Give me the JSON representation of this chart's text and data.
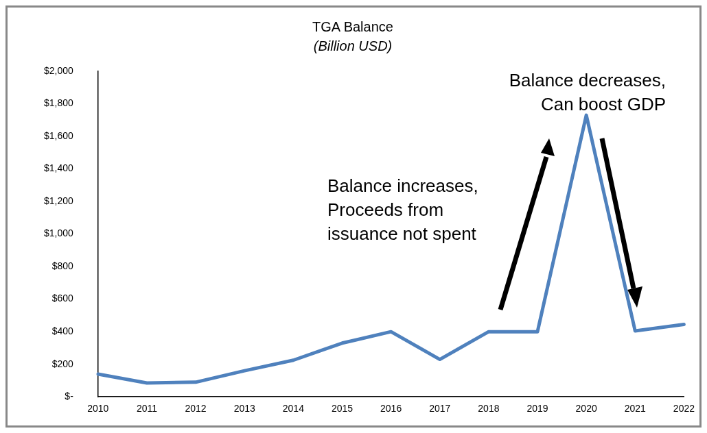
{
  "chart_data": {
    "type": "line",
    "title": "TGA Balance",
    "subtitle": "(Billion USD)",
    "categories": [
      "2010",
      "2011",
      "2012",
      "2013",
      "2014",
      "2015",
      "2016",
      "2017",
      "2018",
      "2019",
      "2020",
      "2021",
      "2022"
    ],
    "series": [
      {
        "color": "#4f81bd",
        "values": [
          140,
          85,
          90,
          160,
          225,
          330,
          400,
          230,
          400,
          400,
          1730,
          405,
          445
        ]
      }
    ],
    "ylim": [
      0,
      2000
    ],
    "yticks": [
      {
        "value": 0,
        "label": "$-"
      },
      {
        "value": 200,
        "label": "$200"
      },
      {
        "value": 400,
        "label": "$400"
      },
      {
        "value": 600,
        "label": "$600"
      },
      {
        "value": 800,
        "label": "$800"
      },
      {
        "value": 1000,
        "label": "$1,000"
      },
      {
        "value": 1200,
        "label": "$1,200"
      },
      {
        "value": 1400,
        "label": "$1,400"
      },
      {
        "value": 1600,
        "label": "$1,600"
      },
      {
        "value": 1800,
        "label": "$1,800"
      },
      {
        "value": 2000,
        "label": "$2,000"
      }
    ],
    "grid": false,
    "legend": false,
    "marker": "none",
    "line_style": "solid",
    "annotations": [
      "Balance increases,\nProceeds from\nissuance not spent",
      "Balance decreases,\nCan boost GDP"
    ]
  }
}
